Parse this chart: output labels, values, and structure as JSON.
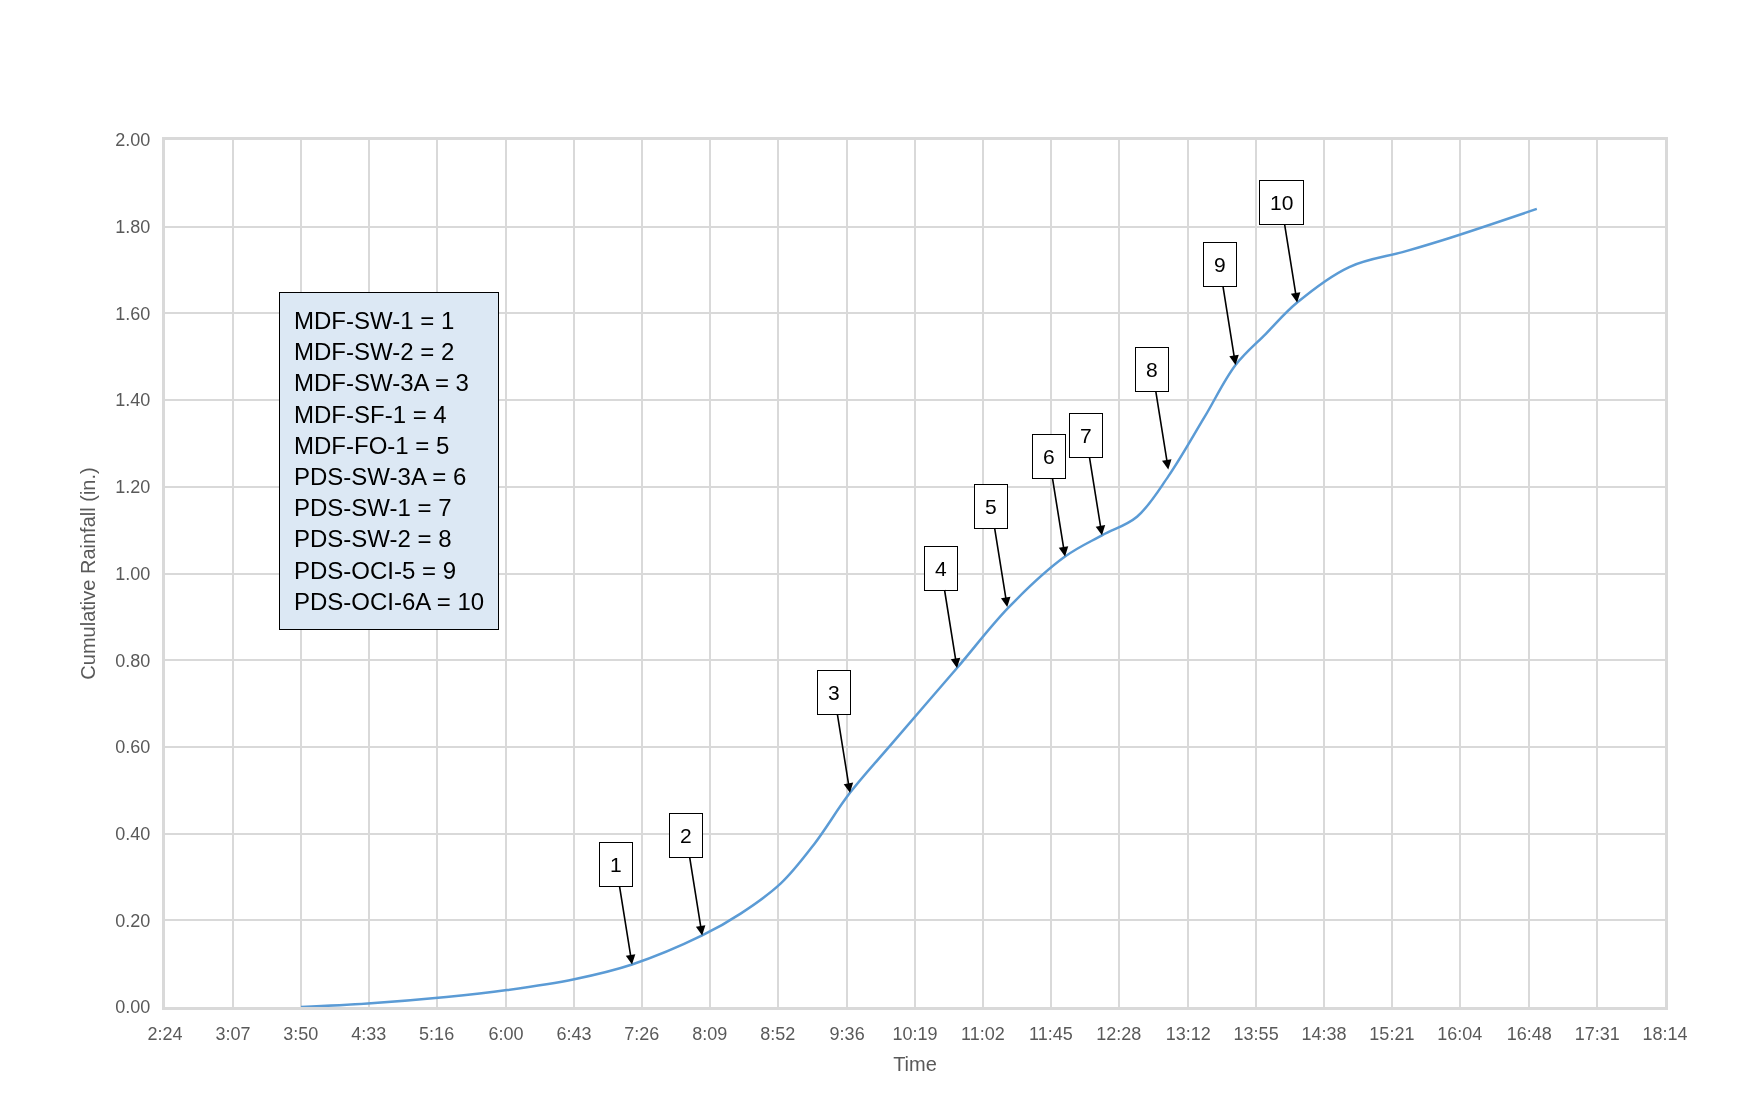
{
  "chart_data": {
    "type": "line",
    "xlabel": "Time",
    "ylabel": "Cumulative Rainfall (in.)",
    "series": [
      {
        "color": "#5b9bd5",
        "x": [
          3.836,
          4.54,
          5.37,
          6.01,
          6.72,
          7.33,
          8.07,
          8.48,
          8.9,
          9.25,
          9.63,
          10.07,
          10.76,
          11.31,
          11.9,
          12.29,
          12.66,
          12.99,
          13.37,
          13.7,
          14.02,
          14.35,
          14.9,
          15.49,
          15.96,
          16.88
        ],
        "values": [
          0,
          0.008,
          0.023,
          0.039,
          0.064,
          0.098,
          0.165,
          0.216,
          0.285,
          0.375,
          0.494,
          0.607,
          0.782,
          0.923,
          1.039,
          1.088,
          1.131,
          1.224,
          1.36,
          1.481,
          1.553,
          1.625,
          1.707,
          1.743,
          1.774,
          1.841
        ]
      }
    ],
    "xlim": [
      2.4,
      18.233
    ],
    "xticks": [
      {
        "value": 2.4,
        "label": "2:24"
      },
      {
        "value": 3.117,
        "label": "3:07"
      },
      {
        "value": 3.833,
        "label": "3:50"
      },
      {
        "value": 4.55,
        "label": "4:33"
      },
      {
        "value": 5.267,
        "label": "5:16"
      },
      {
        "value": 6.0,
        "label": "6:00"
      },
      {
        "value": 6.717,
        "label": "6:43"
      },
      {
        "value": 7.433,
        "label": "7:26"
      },
      {
        "value": 8.15,
        "label": "8:09"
      },
      {
        "value": 8.867,
        "label": "8:52"
      },
      {
        "value": 9.6,
        "label": "9:36"
      },
      {
        "value": 10.317,
        "label": "10:19"
      },
      {
        "value": 11.033,
        "label": "11:02"
      },
      {
        "value": 11.75,
        "label": "11:45"
      },
      {
        "value": 12.467,
        "label": "12:28"
      },
      {
        "value": 13.2,
        "label": "13:12"
      },
      {
        "value": 13.917,
        "label": "13:55"
      },
      {
        "value": 14.633,
        "label": "14:38"
      },
      {
        "value": 15.35,
        "label": "15:21"
      },
      {
        "value": 16.067,
        "label": "16:04"
      },
      {
        "value": 16.8,
        "label": "16:48"
      },
      {
        "value": 17.517,
        "label": "17:31"
      },
      {
        "value": 18.233,
        "label": "18:14"
      }
    ],
    "ylim": [
      0,
      2
    ],
    "yticks": [
      {
        "value": 0,
        "label": "0.00"
      },
      {
        "value": 0.2,
        "label": "0.20"
      },
      {
        "value": 0.4,
        "label": "0.40"
      },
      {
        "value": 0.6,
        "label": "0.60"
      },
      {
        "value": 0.8,
        "label": "0.80"
      },
      {
        "value": 1.0,
        "label": "1.00"
      },
      {
        "value": 1.2,
        "label": "1.20"
      },
      {
        "value": 1.4,
        "label": "1.40"
      },
      {
        "value": 1.6,
        "label": "1.60"
      },
      {
        "value": 1.8,
        "label": "1.80"
      },
      {
        "value": 2.0,
        "label": "2.00"
      }
    ],
    "grid": true,
    "marker": "none",
    "line_style": "solid",
    "annotations": [
      "MDF-SW-1 = 1\nMDF-SW-2 = 2\nMDF-SW-3A = 3\nMDF-SF-1 = 4\nMDF-FO-1 = 5\nPDS-SW-3A = 6\nPDS-SW-1 = 7\nPDS-SW-2 = 8\nPDS-OCI-5 = 9\nPDS-OCI-6A = 10",
      {
        "text": "1",
        "x": 7.33,
        "y": 0.098
      },
      {
        "text": "2",
        "x": 8.07,
        "y": 0.165
      },
      {
        "text": "3",
        "x": 9.63,
        "y": 0.494
      },
      {
        "text": "4",
        "x": 10.76,
        "y": 0.782
      },
      {
        "text": "5",
        "x": 11.29,
        "y": 0.923
      },
      {
        "text": "6",
        "x": 11.9,
        "y": 1.039
      },
      {
        "text": "7",
        "x": 12.29,
        "y": 1.088
      },
      {
        "text": "8",
        "x": 12.99,
        "y": 1.24
      },
      {
        "text": "9",
        "x": 13.7,
        "y": 1.481
      },
      {
        "text": "10",
        "x": 14.35,
        "y": 1.625
      }
    ]
  }
}
